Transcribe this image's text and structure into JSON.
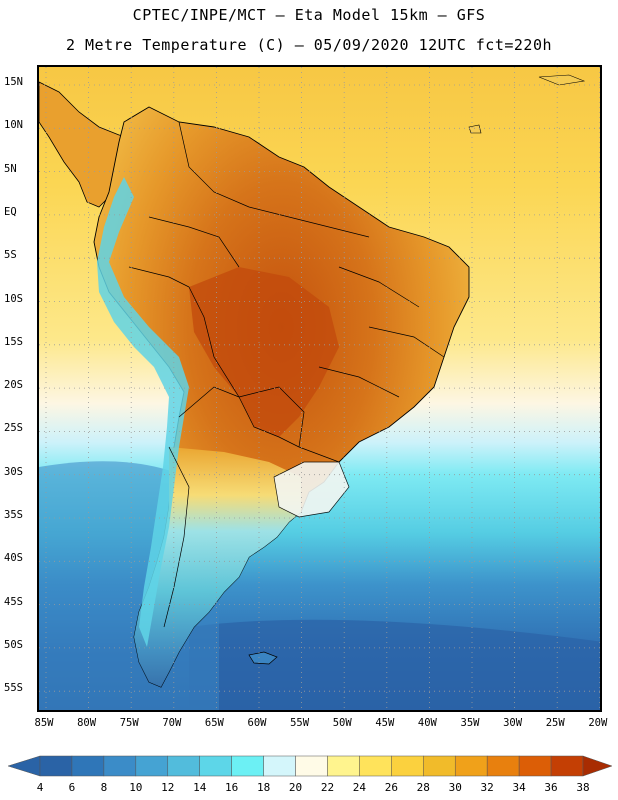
{
  "header": {
    "title_line1": "CPTEC/INPE/MCT –  Eta Model 15km – GFS",
    "title_line2": "2 Metre Temperature (C) – 05/09/2020 12UTC fct=220h"
  },
  "axes": {
    "lat_labels": [
      "15N",
      "10N",
      "5N",
      "EQ",
      "5S",
      "10S",
      "15S",
      "20S",
      "25S",
      "30S",
      "35S",
      "40S",
      "45S",
      "50S",
      "55S"
    ],
    "lon_labels": [
      "85W",
      "80W",
      "75W",
      "70W",
      "65W",
      "60W",
      "55W",
      "50W",
      "45W",
      "40W",
      "35W",
      "30W",
      "25W",
      "20W"
    ]
  },
  "colorbar": {
    "tick_labels": [
      "4",
      "6",
      "8",
      "10",
      "12",
      "14",
      "16",
      "18",
      "20",
      "22",
      "24",
      "26",
      "28",
      "30",
      "32",
      "34",
      "36",
      "38"
    ],
    "colors": [
      "#2a63a6",
      "#2f76b8",
      "#3b8cc8",
      "#45a3d3",
      "#52bcdc",
      "#5dd6e8",
      "#6cf0f4",
      "#d4f6fb",
      "#fffbe7",
      "#fff48e",
      "#ffe35b",
      "#fbd13e",
      "#f1bb2a",
      "#f0a11a",
      "#e8800e",
      "#dc5e06",
      "#c43f04",
      "#a82c02"
    ]
  },
  "map": {
    "ocean_north_color": "#fbdb5c",
    "ocean_mid_color": "#cdf2fa",
    "ocean_south_cyan": "#6fe9f2",
    "ocean_deep_color": "#3a7fc0",
    "land_hot_color": "#c85a12",
    "land_warm_color": "#e39a2c",
    "andes_cold_color": "#5fd3e6"
  }
}
